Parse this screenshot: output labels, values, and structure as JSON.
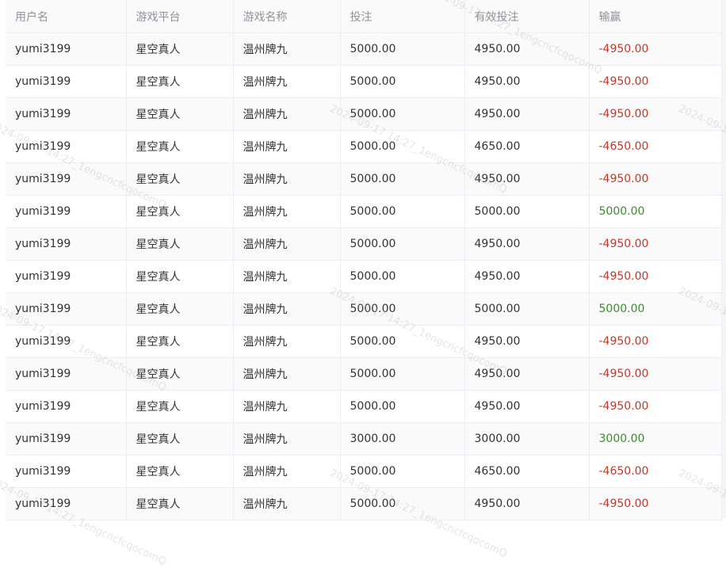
{
  "headers": [
    "用户名",
    "游戏平台",
    "游戏名称",
    "投注",
    "有效投注",
    "输赢"
  ],
  "rows": [
    [
      "yumi3199",
      "星空真人",
      "温州牌九",
      "5000.00",
      "4950.00",
      "-4950.00"
    ],
    [
      "yumi3199",
      "星空真人",
      "温州牌九",
      "5000.00",
      "4950.00",
      "-4950.00"
    ],
    [
      "yumi3199",
      "星空真人",
      "温州牌九",
      "5000.00",
      "4950.00",
      "-4950.00"
    ],
    [
      "yumi3199",
      "星空真人",
      "温州牌九",
      "5000.00",
      "4650.00",
      "-4650.00"
    ],
    [
      "yumi3199",
      "星空真人",
      "温州牌九",
      "5000.00",
      "4950.00",
      "-4950.00"
    ],
    [
      "yumi3199",
      "星空真人",
      "温州牌九",
      "5000.00",
      "5000.00",
      "5000.00"
    ],
    [
      "yumi3199",
      "星空真人",
      "温州牌九",
      "5000.00",
      "4950.00",
      "-4950.00"
    ],
    [
      "yumi3199",
      "星空真人",
      "温州牌九",
      "5000.00",
      "4950.00",
      "-4950.00"
    ],
    [
      "yumi3199",
      "星空真人",
      "温州牌九",
      "5000.00",
      "5000.00",
      "5000.00"
    ],
    [
      "yumi3199",
      "星空真人",
      "温州牌九",
      "5000.00",
      "4950.00",
      "-4950.00"
    ],
    [
      "yumi3199",
      "星空真人",
      "温州牌九",
      "5000.00",
      "4950.00",
      "-4950.00"
    ],
    [
      "yumi3199",
      "星空真人",
      "温州牌九",
      "5000.00",
      "4950.00",
      "-4950.00"
    ],
    [
      "yumi3199",
      "星空真人",
      "温州牌九",
      "3000.00",
      "3000.00",
      "3000.00"
    ],
    [
      "yumi3199",
      "星空真人",
      "温州牌九",
      "5000.00",
      "4650.00",
      "-4650.00"
    ],
    [
      "yumi3199",
      "星空真人",
      "温州牌九",
      "5000.00",
      "4950.00",
      "-4950.00"
    ]
  ],
  "watermark": "2024-09-17 14:27_1engcncfcqocomQ",
  "colors": {
    "loss": "#c0392b",
    "win": "#3d8b2f"
  }
}
